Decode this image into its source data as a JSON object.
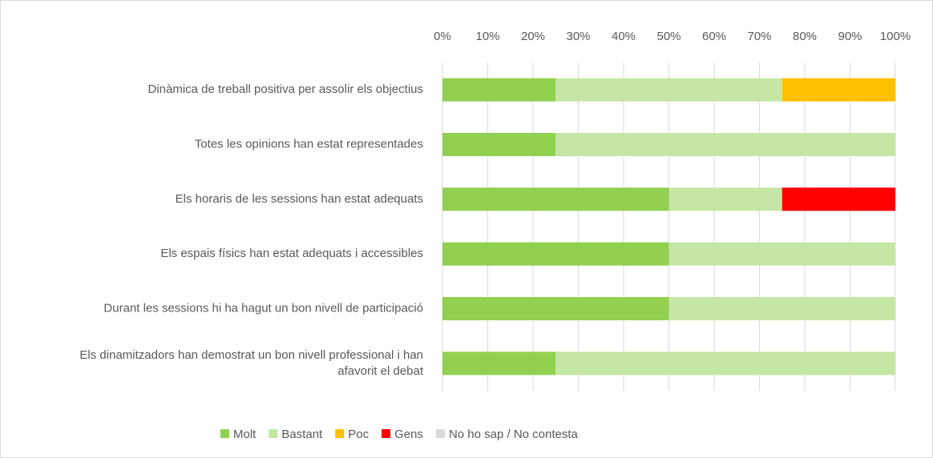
{
  "chart_data": {
    "type": "stacked-bar-horizontal",
    "categories": [
      "Dinàmica de treball positiva per assolir els objectius",
      "Totes les opinions han estat representades",
      "Els horaris de les sessions han estat adequats",
      "Els espais físics han estat adequats i accessibles",
      "Durant les sessions hi ha hagut un bon nivell de participació",
      "Els dinamitzadors han demostrat un bon nivell professional i han afavorit el debat"
    ],
    "series": [
      {
        "name": "Molt",
        "color": "#92d050",
        "values": [
          25,
          25,
          50,
          50,
          50,
          25
        ]
      },
      {
        "name": "Bastant",
        "color": "#c5e6a5",
        "values": [
          50,
          75,
          25,
          50,
          50,
          75
        ]
      },
      {
        "name": "Poc",
        "color": "#ffc000",
        "values": [
          25,
          0,
          0,
          0,
          0,
          0
        ]
      },
      {
        "name": "Gens",
        "color": "#ff0000",
        "values": [
          0,
          0,
          25,
          0,
          0,
          0
        ]
      },
      {
        "name": "No ho sap / No contesta",
        "color": "#d9d9d9",
        "values": [
          0,
          0,
          0,
          0,
          0,
          0
        ]
      }
    ],
    "xlim": [
      0,
      100
    ],
    "xticks": [
      {
        "value": 0,
        "label": "0%"
      },
      {
        "value": 10,
        "label": "10%"
      },
      {
        "value": 20,
        "label": "20%"
      },
      {
        "value": 30,
        "label": "30%"
      },
      {
        "value": 40,
        "label": "40%"
      },
      {
        "value": 50,
        "label": "50%"
      },
      {
        "value": 60,
        "label": "60%"
      },
      {
        "value": 70,
        "label": "70%"
      },
      {
        "value": 80,
        "label": "80%"
      },
      {
        "value": 90,
        "label": "90%"
      },
      {
        "value": 100,
        "label": "100%"
      }
    ],
    "grid": true,
    "legend": "bottom"
  }
}
